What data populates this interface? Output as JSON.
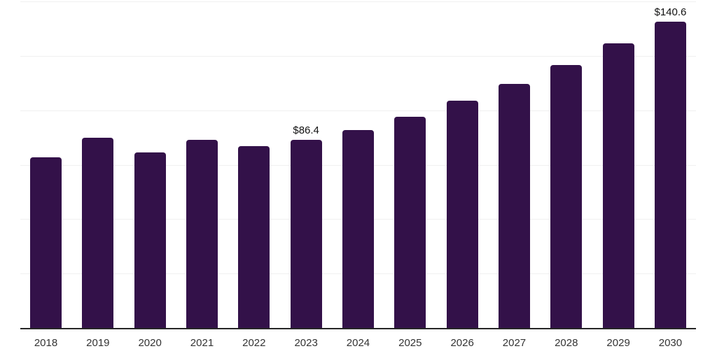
{
  "chart_data": {
    "type": "bar",
    "title": "",
    "xlabel": "",
    "ylabel": "",
    "categories": [
      "2018",
      "2019",
      "2020",
      "2021",
      "2022",
      "2023",
      "2024",
      "2025",
      "2026",
      "2027",
      "2028",
      "2029",
      "2030"
    ],
    "values": [
      78.5,
      87.3,
      80.5,
      86.3,
      83.5,
      86.4,
      91.0,
      97.0,
      104.5,
      112.2,
      120.8,
      130.7,
      140.6
    ],
    "data_labels": {
      "2023": "$86.4",
      "2030": "$140.6"
    },
    "ylim": [
      0,
      150
    ],
    "gridline_step": 25,
    "grid": true,
    "legend": "none",
    "bar_corner_radius_px": 4,
    "colors": {
      "bar": "#331149",
      "gridline": "#f0f0f0",
      "axis_line": "#262626",
      "tick_label": "#333333",
      "data_label": "#111111",
      "background": "#ffffff"
    }
  }
}
